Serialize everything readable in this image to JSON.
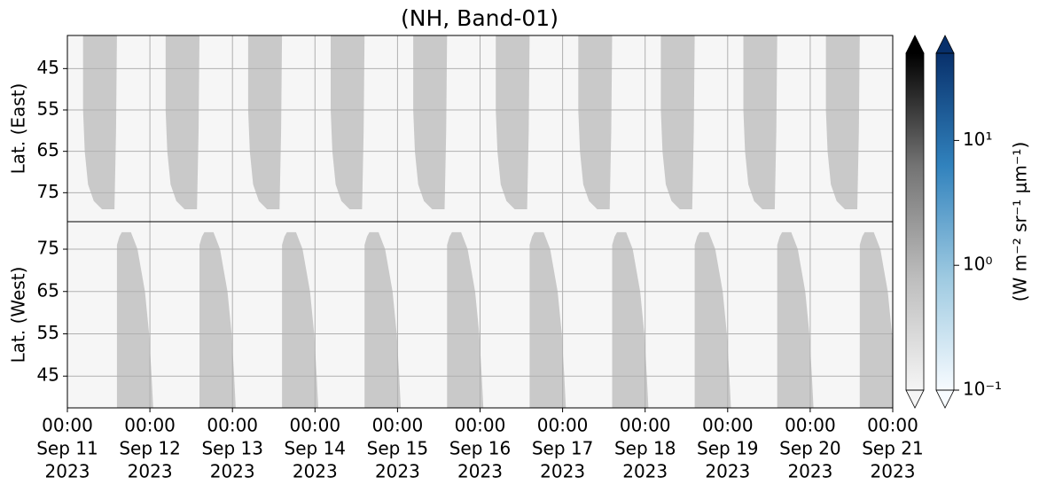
{
  "chart_data": {
    "type": "heatmap",
    "title": "(NH, Band-01)",
    "xlim": [
      "2023-09-11 00:00",
      "2023-09-21 00:00"
    ],
    "xticks": [
      {
        "value": "2023-09-11 00:00",
        "label": [
          "00:00",
          "Sep 11",
          "2023"
        ]
      },
      {
        "value": "2023-09-12 00:00",
        "label": [
          "00:00",
          "Sep 12",
          "2023"
        ]
      },
      {
        "value": "2023-09-13 00:00",
        "label": [
          "00:00",
          "Sep 13",
          "2023"
        ]
      },
      {
        "value": "2023-09-14 00:00",
        "label": [
          "00:00",
          "Sep 14",
          "2023"
        ]
      },
      {
        "value": "2023-09-15 00:00",
        "label": [
          "00:00",
          "Sep 15",
          "2023"
        ]
      },
      {
        "value": "2023-09-16 00:00",
        "label": [
          "00:00",
          "Sep 16",
          "2023"
        ]
      },
      {
        "value": "2023-09-17 00:00",
        "label": [
          "00:00",
          "Sep 17",
          "2023"
        ]
      },
      {
        "value": "2023-09-18 00:00",
        "label": [
          "00:00",
          "Sep 18",
          "2023"
        ]
      },
      {
        "value": "2023-09-19 00:00",
        "label": [
          "00:00",
          "Sep 19",
          "2023"
        ]
      },
      {
        "value": "2023-09-20 00:00",
        "label": [
          "00:00",
          "Sep 20",
          "2023"
        ]
      },
      {
        "value": "2023-09-21 00:00",
        "label": [
          "00:00",
          "Sep 21",
          "2023"
        ]
      }
    ],
    "grid": true,
    "background": "#f6f6f6",
    "swath_color": "#c9c9c9",
    "panels": [
      {
        "ylabel": "Lat. (East)",
        "ylim": [
          37,
          82
        ],
        "yticks": [
          45,
          55,
          65,
          75
        ],
        "inverted": true,
        "swath_shape": [
          [
            0.19,
            37
          ],
          [
            0.6,
            37
          ],
          [
            0.59,
            60
          ],
          [
            0.57,
            79
          ],
          [
            0.42,
            79
          ],
          [
            0.32,
            77
          ],
          [
            0.25,
            73
          ],
          [
            0.21,
            65
          ],
          [
            0.19,
            55
          ]
        ],
        "swaths": [
          "2023-09-11 00:00",
          "2023-09-12 00:00",
          "2023-09-13 00:00",
          "2023-09-14 00:00",
          "2023-09-15 00:00",
          "2023-09-16 00:00",
          "2023-09-17 00:00",
          "2023-09-18 00:00",
          "2023-09-19 00:00",
          "2023-09-20 00:00"
        ]
      },
      {
        "ylabel": "Lat. (West)",
        "ylim": [
          37.5,
          81.5
        ],
        "yticks": [
          45,
          55,
          65,
          75
        ],
        "inverted": false,
        "swath_shape": [
          [
            0.6,
            37.5
          ],
          [
            0.6,
            76
          ],
          [
            0.63,
            78
          ],
          [
            0.66,
            79
          ],
          [
            0.77,
            79
          ],
          [
            0.85,
            75
          ],
          [
            0.94,
            65
          ],
          [
            0.99,
            55
          ],
          [
            1.02,
            45
          ],
          [
            1.04,
            37.5
          ]
        ],
        "swaths": [
          "2023-09-11 00:00",
          "2023-09-12 00:00",
          "2023-09-13 00:00",
          "2023-09-14 00:00",
          "2023-09-15 00:00",
          "2023-09-16 00:00",
          "2023-09-17 00:00",
          "2023-09-18 00:00",
          "2023-09-19 00:00",
          "2023-09-20 00:00"
        ]
      }
    ],
    "colorbars": [
      {
        "colors": [
          "#f5f5f5",
          "#bdbdbd",
          "#737373",
          "#000000"
        ],
        "clim": [
          0.1,
          50
        ],
        "log": true
      },
      {
        "colors": [
          "#f7fbff",
          "#9ecae1",
          "#3182bd",
          "#08306b"
        ],
        "clim": [
          0.1,
          50
        ],
        "log": true,
        "ticks": [
          {
            "value": 0.1,
            "label": "10⁻¹"
          },
          {
            "value": 1,
            "label": "10⁰"
          },
          {
            "value": 10,
            "label": "10¹"
          }
        ],
        "label": "(W m⁻² sr⁻¹ μm⁻¹)"
      }
    ]
  }
}
